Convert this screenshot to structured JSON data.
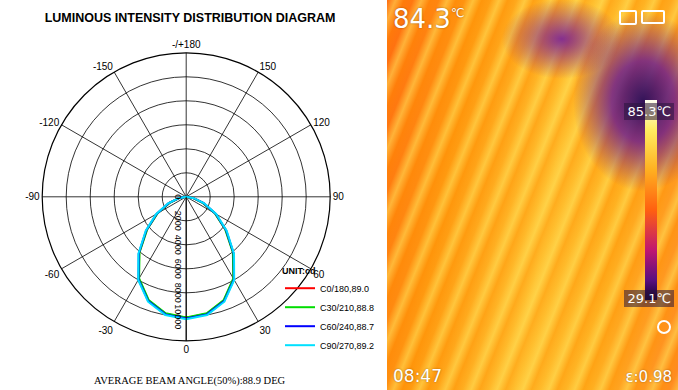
{
  "chart_data": [
    {
      "type": "polar",
      "title": "LUMINOUS INTENSITY DISTRIBUTION DIAGRAM",
      "annotation": "AVERAGE BEAM ANGLE(50%):88.9 DEG",
      "legend_title": "UNIT:cd",
      "legend": "lower right",
      "grid": true,
      "theta": [
        -90,
        -80,
        -70,
        -60,
        -50,
        -40,
        -30,
        -20,
        -10,
        0,
        10,
        20,
        30,
        40,
        50,
        60,
        70,
        80,
        90
      ],
      "thetaticks": [
        0,
        30,
        60,
        90,
        120,
        150,
        {
          "value": 180,
          "label": "-/+180"
        },
        {
          "value": 210,
          "label": "-150"
        },
        {
          "value": 240,
          "label": "-120"
        },
        {
          "value": 270,
          "label": "-90"
        },
        {
          "value": 300,
          "label": "-60"
        },
        {
          "value": 330,
          "label": "-30"
        }
      ],
      "rlim": [
        0,
        12000
      ],
      "rticks": [
        0,
        2000,
        4000,
        6000,
        8000,
        10000
      ],
      "series": [
        {
          "name": "C0/180,89.0",
          "color": "#ff0000",
          "values": [
            0,
            600,
            1500,
            2800,
            4300,
            6100,
            7900,
            9200,
            9900,
            10100,
            9900,
            9200,
            7900,
            6100,
            4300,
            2800,
            1500,
            600,
            0
          ]
        },
        {
          "name": "C30/210,88.8",
          "color": "#00dd00",
          "values": [
            0,
            550,
            1450,
            2750,
            4250,
            6050,
            7850,
            9150,
            9850,
            10050,
            9850,
            9150,
            7850,
            6050,
            4250,
            2750,
            1450,
            550,
            0
          ]
        },
        {
          "name": "C60/240,88.7",
          "color": "#0000ff",
          "values": [
            0,
            620,
            1550,
            2850,
            4350,
            6150,
            7950,
            9250,
            9950,
            10150,
            9950,
            9250,
            7950,
            6150,
            4350,
            2850,
            1550,
            620,
            0
          ]
        },
        {
          "name": "C90/270,89.2",
          "color": "#00e0ff",
          "values": [
            0,
            650,
            1600,
            2900,
            4400,
            6200,
            8000,
            9300,
            10000,
            10200,
            10000,
            9300,
            8000,
            6200,
            4400,
            2900,
            1600,
            650,
            0
          ]
        }
      ]
    }
  ],
  "thermal_image": {
    "temperature": "84.3",
    "unit": "℃",
    "scale_max": "85.3℃",
    "scale_min": "29.1℃",
    "time": "08:47",
    "emissivity": "ε:0.98"
  }
}
